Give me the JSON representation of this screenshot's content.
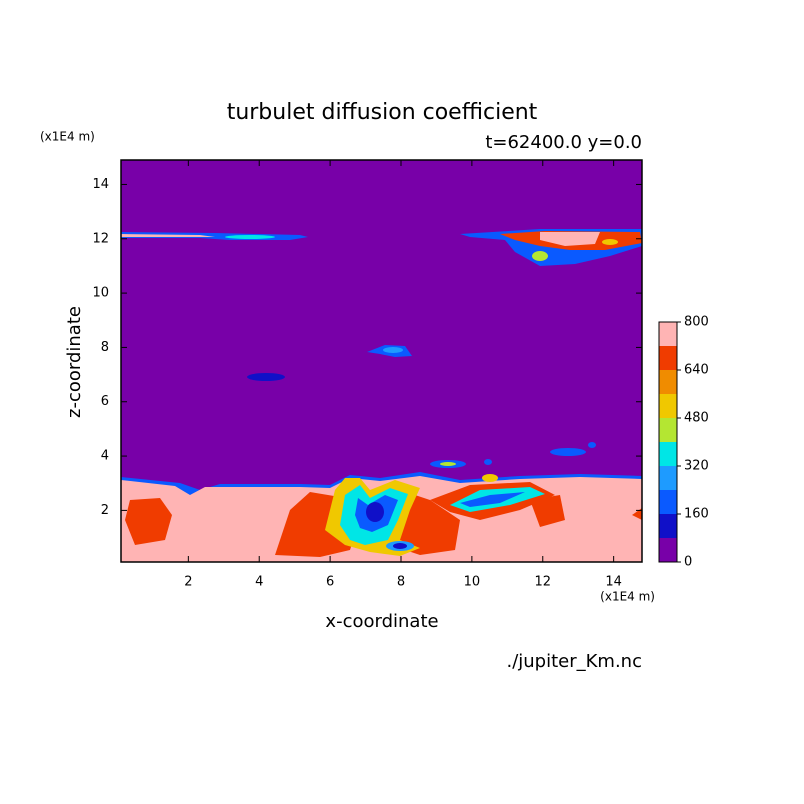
{
  "chart_data": {
    "type": "contour",
    "title": "turbulet diffusion coefficient",
    "subtitle": "t=62400.0 y=0.0",
    "x_label": "x-coordinate",
    "y_label": "z-coordinate",
    "x_unit": "(x1E4 m)",
    "y_unit": "(x1E4 m)",
    "source": "./jupiter_Km.nc",
    "xlim": [
      0.1,
      14.8
    ],
    "ylim": [
      0.1,
      14.9
    ],
    "xticks": [
      2,
      4,
      6,
      8,
      10,
      12,
      14
    ],
    "yticks": [
      2,
      4,
      6,
      8,
      10,
      12,
      14
    ],
    "colorbar": {
      "levels": [
        0,
        80,
        160,
        240,
        320,
        400,
        480,
        560,
        640,
        720,
        800
      ],
      "ticks": [
        0,
        160,
        320,
        480,
        640,
        800
      ],
      "colors": [
        "#7800a8",
        "#1010c8",
        "#0a5aff",
        "#1e9bff",
        "#00e6e6",
        "#b4e632",
        "#f0c800",
        "#f08c00",
        "#f03c00",
        "#ffb4b4"
      ]
    }
  }
}
